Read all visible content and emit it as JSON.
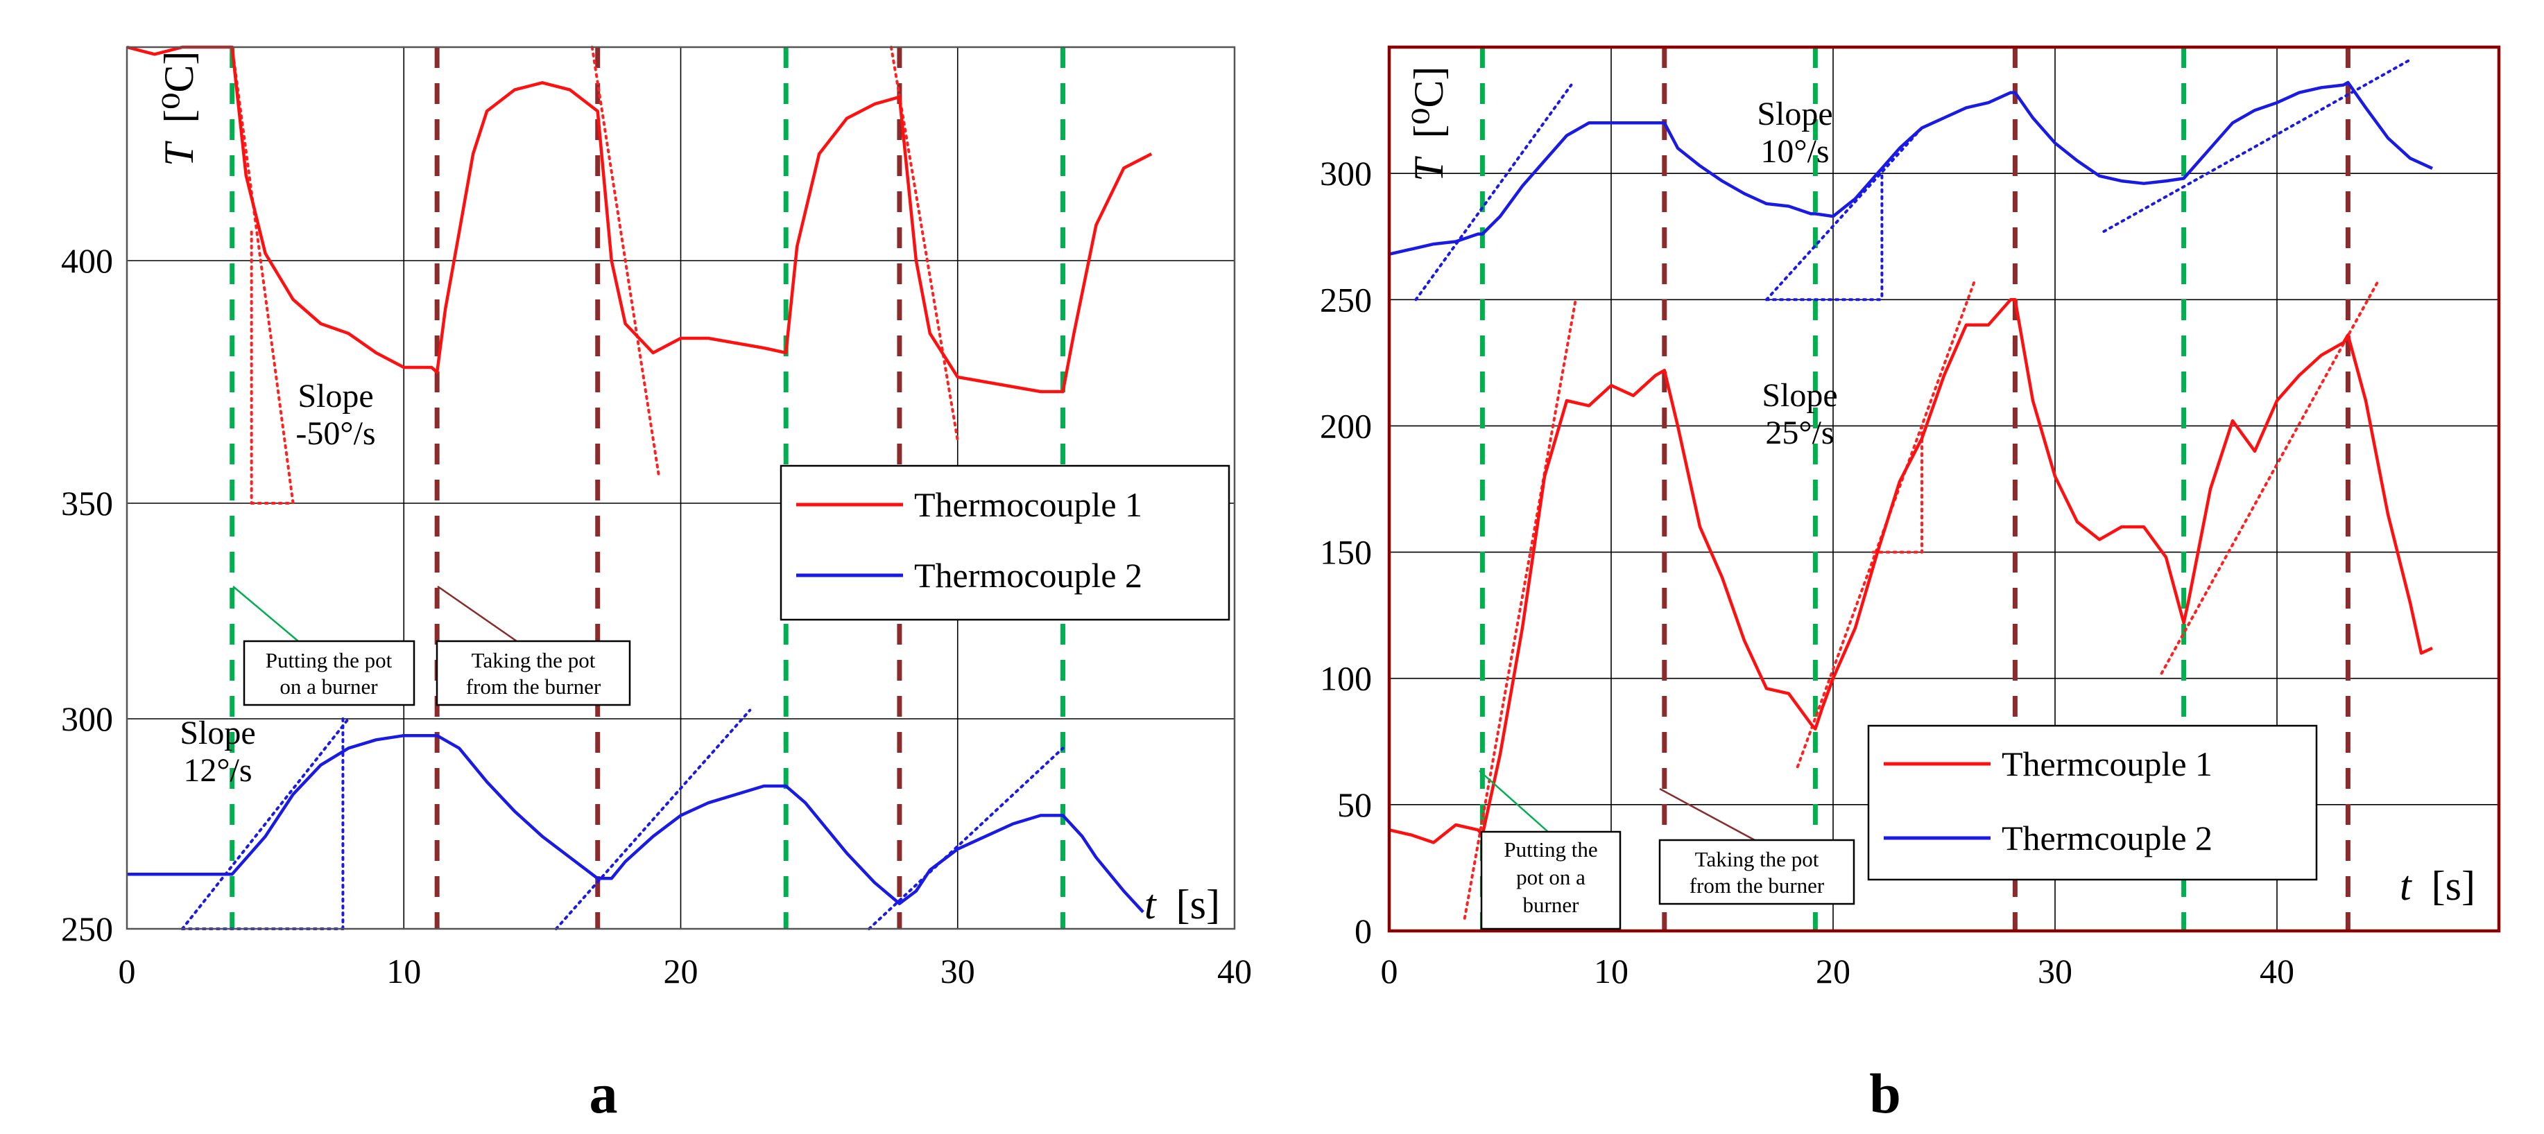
{
  "chart_data": [
    {
      "panel": "a",
      "type": "line",
      "xlabel_var": "t",
      "xlabel_unit": "[s]",
      "ylabel_var": "T",
      "ylabel_unit": "[⁰C]",
      "xlim": [
        0,
        40
      ],
      "x_ticks": [
        0,
        10,
        20,
        30,
        40
      ],
      "y_ticks": [
        250,
        300,
        350,
        400
      ],
      "y_segments": [
        [
          250,
          300
        ],
        [
          300,
          350
        ],
        [
          350,
          400
        ],
        [
          400,
          430
        ]
      ],
      "legend": [
        "Thermocouple 1",
        "Thermocouple 2"
      ],
      "green_events_s": [
        3.8,
        23.8,
        33.8
      ],
      "brown_events_s": [
        11.2,
        17.0,
        27.9
      ],
      "series": [
        {
          "name": "Thermocouple 1",
          "color": "#ff1010",
          "points": [
            [
              0,
              430
            ],
            [
              1,
              429
            ],
            [
              2,
              430
            ],
            [
              3,
              430
            ],
            [
              3.8,
              430
            ],
            [
              4.3,
              412
            ],
            [
              5,
              401
            ],
            [
              6,
              392
            ],
            [
              7,
              387
            ],
            [
              8,
              385
            ],
            [
              9,
              381
            ],
            [
              10,
              378
            ],
            [
              11,
              378
            ],
            [
              11.2,
              377
            ],
            [
              11.5,
              390
            ],
            [
              12,
              404
            ],
            [
              12.5,
              415
            ],
            [
              13,
              421
            ],
            [
              14,
              424
            ],
            [
              15,
              425
            ],
            [
              16,
              424
            ],
            [
              17,
              421
            ],
            [
              17.5,
              400
            ],
            [
              18,
              387
            ],
            [
              19,
              381
            ],
            [
              20,
              384
            ],
            [
              21,
              384
            ],
            [
              22,
              383
            ],
            [
              23,
              382
            ],
            [
              23.8,
              381
            ],
            [
              24.2,
              402
            ],
            [
              25,
              415
            ],
            [
              26,
              420
            ],
            [
              27,
              422
            ],
            [
              27.9,
              423
            ],
            [
              28.5,
              400
            ],
            [
              29,
              385
            ],
            [
              30,
              376
            ],
            [
              31,
              375
            ],
            [
              32,
              374
            ],
            [
              33,
              373
            ],
            [
              33.8,
              373
            ],
            [
              34.2,
              385
            ],
            [
              35,
              405
            ],
            [
              36,
              413
            ],
            [
              37,
              415
            ]
          ]
        },
        {
          "name": "Thermocouple 2",
          "color": "#1a1ae6",
          "points": [
            [
              0,
              263
            ],
            [
              2,
              263
            ],
            [
              3.8,
              263
            ],
            [
              5,
              272
            ],
            [
              6,
              282
            ],
            [
              7,
              289
            ],
            [
              8,
              293
            ],
            [
              9,
              295
            ],
            [
              10,
              296
            ],
            [
              11,
              296
            ],
            [
              11.2,
              296
            ],
            [
              12,
              293
            ],
            [
              13,
              285
            ],
            [
              14,
              278
            ],
            [
              15,
              272
            ],
            [
              16,
              267
            ],
            [
              17,
              262
            ],
            [
              17.5,
              262
            ],
            [
              18,
              266
            ],
            [
              19,
              272
            ],
            [
              20,
              277
            ],
            [
              21,
              280
            ],
            [
              22,
              282
            ],
            [
              23,
              284
            ],
            [
              23.8,
              284
            ],
            [
              24.5,
              280
            ],
            [
              25,
              276
            ],
            [
              26,
              268
            ],
            [
              27,
              261
            ],
            [
              27.9,
              256
            ],
            [
              28.5,
              259
            ],
            [
              29,
              264
            ],
            [
              30,
              269
            ],
            [
              31,
              272
            ],
            [
              32,
              275
            ],
            [
              33,
              277
            ],
            [
              33.8,
              277
            ],
            [
              34.5,
              272
            ],
            [
              35,
              267
            ],
            [
              36,
              259
            ],
            [
              36.7,
              254
            ]
          ]
        }
      ],
      "tangents": [
        {
          "color": "red",
          "from": [
            3.8,
            430
          ],
          "to": [
            6.0,
            350
          ]
        },
        {
          "color": "red",
          "from": [
            16.8,
            430
          ],
          "to": [
            19.2,
            356
          ]
        },
        {
          "color": "red",
          "from": [
            27.6,
            437
          ],
          "to": [
            30.0,
            363
          ]
        },
        {
          "color": "blue",
          "from": [
            2.0,
            250
          ],
          "to": [
            8.0,
            300
          ]
        },
        {
          "color": "blue",
          "from": [
            15.5,
            250
          ],
          "to": [
            22.5,
            302
          ]
        },
        {
          "color": "blue",
          "from": [
            26.8,
            250
          ],
          "to": [
            33.8,
            293
          ]
        }
      ],
      "slope_triangles": [
        {
          "color": "red",
          "vertical": [
            [
              4.5,
              404
            ],
            [
              4.5,
              350
            ]
          ],
          "horizontal": [
            [
              4.5,
              350
            ],
            [
              6.0,
              350
            ]
          ]
        },
        {
          "color": "blue",
          "vertical": [
            [
              7.8,
              300
            ],
            [
              7.8,
              250
            ]
          ],
          "horizontal": [
            [
              2.0,
              250
            ],
            [
              7.8,
              250
            ]
          ]
        }
      ],
      "slope_labels": [
        {
          "line1": "Slope",
          "line2": "-50°/s"
        },
        {
          "line1": "Slope",
          "line2": "12°/s"
        }
      ],
      "annotations": [
        {
          "line1": "Putting the pot",
          "line2": "on a burner"
        },
        {
          "line1": "Taking the pot",
          "line2": "from the burner"
        }
      ],
      "panel_label": "a"
    },
    {
      "panel": "b",
      "type": "line",
      "xlabel_var": "t",
      "xlabel_unit": "[s]",
      "ylabel_var": "T",
      "ylabel_unit": "[⁰C]",
      "xlim": [
        0,
        50
      ],
      "ylim": [
        0,
        350
      ],
      "x_ticks": [
        0,
        10,
        20,
        30,
        40
      ],
      "y_ticks": [
        0,
        50,
        100,
        150,
        200,
        250,
        300
      ],
      "legend": [
        "Thermcouple 1",
        "Thermcouple 2"
      ],
      "green_events_s": [
        4.2,
        19.2,
        35.8
      ],
      "brown_events_s": [
        12.4,
        28.2,
        43.2
      ],
      "series": [
        {
          "name": "Thermcouple 1",
          "color": "#ff1010",
          "points": [
            [
              0,
              40
            ],
            [
              1,
              38
            ],
            [
              2,
              35
            ],
            [
              3,
              42
            ],
            [
              4,
              40
            ],
            [
              4.2,
              38
            ],
            [
              5,
              70
            ],
            [
              6,
              120
            ],
            [
              7,
              180
            ],
            [
              8,
              210
            ],
            [
              9,
              208
            ],
            [
              10,
              216
            ],
            [
              11,
              212
            ],
            [
              12,
              220
            ],
            [
              12.4,
              222
            ],
            [
              13,
              200
            ],
            [
              14,
              160
            ],
            [
              15,
              140
            ],
            [
              16,
              115
            ],
            [
              17,
              96
            ],
            [
              18,
              94
            ],
            [
              19,
              82
            ],
            [
              19.2,
              80
            ],
            [
              19.5,
              88
            ],
            [
              20,
              100
            ],
            [
              21,
              120
            ],
            [
              22,
              150
            ],
            [
              23,
              178
            ],
            [
              24,
              195
            ],
            [
              25,
              220
            ],
            [
              26,
              240
            ],
            [
              27,
              240
            ],
            [
              28,
              250
            ],
            [
              28.2,
              250
            ],
            [
              29,
              210
            ],
            [
              30,
              180
            ],
            [
              31,
              162
            ],
            [
              32,
              155
            ],
            [
              33,
              160
            ],
            [
              34,
              160
            ],
            [
              35,
              148
            ],
            [
              35.8,
              122
            ],
            [
              36,
              130
            ],
            [
              37,
              175
            ],
            [
              38,
              202
            ],
            [
              39,
              190
            ],
            [
              40,
              210
            ],
            [
              41,
              220
            ],
            [
              42,
              228
            ],
            [
              43,
              233
            ],
            [
              43.2,
              236
            ],
            [
              44,
              210
            ],
            [
              45,
              165
            ],
            [
              46,
              130
            ],
            [
              46.5,
              110
            ],
            [
              47,
              112
            ]
          ]
        },
        {
          "name": "Thermcouple 2",
          "color": "#1a1ae6",
          "points": [
            [
              0,
              268
            ],
            [
              1,
              270
            ],
            [
              2,
              272
            ],
            [
              3,
              273
            ],
            [
              4,
              276
            ],
            [
              4.2,
              276
            ],
            [
              5,
              283
            ],
            [
              6,
              295
            ],
            [
              7,
              305
            ],
            [
              8,
              315
            ],
            [
              9,
              320
            ],
            [
              10,
              320
            ],
            [
              11,
              320
            ],
            [
              12,
              320
            ],
            [
              12.4,
              320
            ],
            [
              13,
              310
            ],
            [
              14,
              303
            ],
            [
              15,
              297
            ],
            [
              16,
              292
            ],
            [
              17,
              288
            ],
            [
              18,
              287
            ],
            [
              19,
              284
            ],
            [
              19.2,
              284
            ],
            [
              20,
              283
            ],
            [
              21,
              290
            ],
            [
              22,
              300
            ],
            [
              23,
              310
            ],
            [
              24,
              318
            ],
            [
              25,
              322
            ],
            [
              26,
              326
            ],
            [
              27,
              328
            ],
            [
              28,
              332
            ],
            [
              28.2,
              332
            ],
            [
              29,
              322
            ],
            [
              30,
              312
            ],
            [
              31,
              305
            ],
            [
              32,
              299
            ],
            [
              33,
              297
            ],
            [
              34,
              296
            ],
            [
              35,
              297
            ],
            [
              35.8,
              298
            ],
            [
              37,
              310
            ],
            [
              38,
              320
            ],
            [
              39,
              325
            ],
            [
              40,
              328
            ],
            [
              41,
              332
            ],
            [
              42,
              334
            ],
            [
              43,
              335
            ],
            [
              43.2,
              336
            ],
            [
              44,
              326
            ],
            [
              45,
              314
            ],
            [
              46,
              306
            ],
            [
              47,
              302
            ]
          ]
        }
      ],
      "tangents": [
        {
          "color": "red",
          "from": [
            3.4,
            5
          ],
          "to": [
            8.4,
            250
          ]
        },
        {
          "color": "red",
          "from": [
            18.4,
            65
          ],
          "to": [
            26.4,
            258
          ]
        },
        {
          "color": "red",
          "from": [
            34.8,
            102
          ],
          "to": [
            44.6,
            258
          ]
        },
        {
          "color": "blue",
          "from": [
            1.2,
            250
          ],
          "to": [
            8.2,
            335
          ]
        },
        {
          "color": "blue",
          "from": [
            17.0,
            250
          ],
          "to": [
            24.0,
            318
          ]
        },
        {
          "color": "blue",
          "from": [
            32.2,
            277
          ],
          "to": [
            46.0,
            345
          ]
        }
      ],
      "slope_triangles": [
        {
          "color": "blue",
          "vertical": [
            [
              22.2,
              299
            ],
            [
              22.2,
              250
            ]
          ],
          "horizontal": [
            [
              17.0,
              250
            ],
            [
              22.2,
              250
            ]
          ]
        },
        {
          "color": "red",
          "vertical": [
            [
              24.0,
              200
            ],
            [
              24.0,
              150
            ]
          ],
          "horizontal": [
            [
              21.8,
              150
            ],
            [
              24.0,
              150
            ]
          ]
        }
      ],
      "slope_labels": [
        {
          "line1": "Slope",
          "line2": "10°/s"
        },
        {
          "line1": "Slope",
          "line2": "25°/s"
        }
      ],
      "annotations": [
        {
          "line1": "Putting the",
          "line2": "pot on a",
          "line3": "burner"
        },
        {
          "line1": "Taking the pot",
          "line2": "from the burner"
        }
      ],
      "panel_label": "b"
    }
  ]
}
